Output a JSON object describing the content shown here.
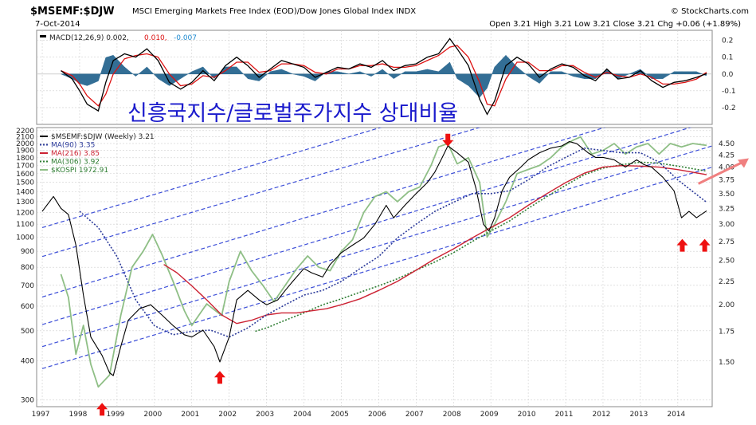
{
  "header": {
    "symbol": "$MSEMF:$DJW",
    "description": "MSCI Emerging Markets Free Index (EOD)/Dow Jones Global Index INDX",
    "brand": "© StockCharts.com",
    "date": "7-Oct-2014",
    "ohlc": "Open 3.21  High 3.21  Low 3.21  Close 3.21  Chg +0.06 (+1.89%)"
  },
  "overlay_title": "신흥국지수/글로벌주가지수 상대비율",
  "colors": {
    "ratio": "#000000",
    "ma90": "#2c3b9a",
    "ma216": "#cc2233",
    "ma306": "#2e7d32",
    "kospi": "#8fbf86",
    "channel": "#3d4fd8",
    "arrow": "#ee1111",
    "macd_line": "#000000",
    "macd_signal": "#dd1111",
    "macd_hist": "#1e5f8a",
    "grid": "#cfcfcf"
  },
  "chart_data": [
    {
      "type": "line",
      "panel": "MACD",
      "title": "MACD(12,26,9) 0.002, 0.010, -0.007",
      "legend": {
        "prefix": "MACD(12,26,9) 0.002,",
        "signal_value": "0.010,",
        "hist_value": "-0.007"
      },
      "ylim": [
        -0.3,
        0.26
      ],
      "yticks": [
        "0.2",
        "0.1",
        "0.0",
        "-0.1",
        "-0.2"
      ],
      "ytick_values": [
        0.2,
        0.1,
        0.0,
        -0.1,
        -0.2
      ],
      "x": [
        1997.5,
        1997.8,
        1998.0,
        1998.2,
        1998.5,
        1998.7,
        1998.9,
        1999.2,
        1999.5,
        1999.8,
        2000.1,
        2000.4,
        2000.7,
        2001.0,
        2001.3,
        2001.6,
        2001.9,
        2002.2,
        2002.5,
        2002.8,
        2003.1,
        2003.4,
        2003.7,
        2004.0,
        2004.3,
        2004.6,
        2004.9,
        2005.2,
        2005.5,
        2005.8,
        2006.1,
        2006.4,
        2006.7,
        2007.0,
        2007.3,
        2007.6,
        2007.9,
        2008.1,
        2008.4,
        2008.7,
        2008.9,
        2009.1,
        2009.4,
        2009.7,
        2010.0,
        2010.3,
        2010.6,
        2010.9,
        2011.2,
        2011.5,
        2011.8,
        2012.1,
        2012.4,
        2012.7,
        2013.0,
        2013.3,
        2013.6,
        2013.9,
        2014.2,
        2014.5,
        2014.77
      ],
      "series": [
        {
          "name": "MACD",
          "values": [
            0.02,
            -0.03,
            -0.1,
            -0.18,
            -0.22,
            -0.05,
            0.08,
            0.12,
            0.1,
            0.15,
            0.08,
            -0.05,
            -0.09,
            -0.05,
            0.02,
            -0.04,
            0.05,
            0.1,
            0.05,
            -0.02,
            0.03,
            0.08,
            0.06,
            0.04,
            -0.02,
            0.01,
            0.04,
            0.03,
            0.06,
            0.04,
            0.08,
            0.02,
            0.05,
            0.06,
            0.1,
            0.12,
            0.21,
            0.15,
            0.05,
            -0.15,
            -0.24,
            -0.16,
            0.05,
            0.1,
            0.06,
            -0.02,
            0.03,
            0.06,
            0.04,
            -0.01,
            -0.04,
            0.03,
            -0.03,
            -0.02,
            0.02,
            -0.04,
            -0.08,
            -0.05,
            -0.04,
            -0.02,
            0.002
          ]
        },
        {
          "name": "Signal",
          "values": [
            0.02,
            -0.01,
            -0.06,
            -0.13,
            -0.19,
            -0.12,
            0.0,
            0.09,
            0.11,
            0.12,
            0.1,
            0.0,
            -0.07,
            -0.06,
            -0.01,
            -0.02,
            0.02,
            0.07,
            0.07,
            0.01,
            0.02,
            0.06,
            0.06,
            0.05,
            0.01,
            0.0,
            0.03,
            0.03,
            0.05,
            0.05,
            0.06,
            0.04,
            0.04,
            0.05,
            0.08,
            0.11,
            0.16,
            0.17,
            0.1,
            -0.05,
            -0.18,
            -0.19,
            -0.03,
            0.07,
            0.07,
            0.02,
            0.02,
            0.05,
            0.05,
            0.01,
            -0.02,
            0.01,
            -0.01,
            -0.02,
            0.0,
            -0.02,
            -0.06,
            -0.06,
            -0.05,
            -0.03,
            0.01
          ]
        }
      ]
    },
    {
      "type": "line",
      "panel": "Price",
      "title": "$MSEMF:$DJW (Weekly) 3.21",
      "yscale": "log",
      "ylim_left": [
        285,
        2250
      ],
      "yticks_left": [
        "2200",
        "2100",
        "2000",
        "1900",
        "1800",
        "1700",
        "1600",
        "1500",
        "1400",
        "1300",
        "1200",
        "1100",
        "1000",
        "900",
        "800",
        "700",
        "600",
        "500",
        "400",
        "300"
      ],
      "ytick_values_left": [
        2200,
        2100,
        2000,
        1900,
        1800,
        1700,
        1600,
        1500,
        1400,
        1300,
        1200,
        1100,
        1000,
        900,
        800,
        700,
        600,
        500,
        400,
        300
      ],
      "yticks_right": [
        "4.50",
        "4.25",
        "4.00",
        "3.75",
        "3.50",
        "3.25",
        "3.00",
        "2.75",
        "2.50",
        "2.25",
        "2.00",
        "1.75",
        "1.50"
      ],
      "ytick_values_right": [
        4.5,
        4.25,
        4.0,
        3.75,
        3.5,
        3.25,
        3.0,
        2.75,
        2.5,
        2.25,
        2.0,
        1.75,
        1.5
      ],
      "xlim": [
        1996.85,
        2014.92
      ],
      "xticks": [
        "1997",
        "1998",
        "1999",
        "2000",
        "2001",
        "2002",
        "2003",
        "2004",
        "2005",
        "2006",
        "2007",
        "2008",
        "2009",
        "2010",
        "2011",
        "2012",
        "2013",
        "2014"
      ],
      "xtick_values": [
        1997,
        1998,
        1999,
        2000,
        2001,
        2002,
        2003,
        2004,
        2005,
        2006,
        2007,
        2008,
        2009,
        2010,
        2011,
        2012,
        2013,
        2014
      ],
      "legend": [
        {
          "label": "$MSEMF:$DJW (Weekly) 3.21",
          "series": "ratio"
        },
        {
          "label": "MA(90) 3.35",
          "series": "ma90"
        },
        {
          "label": "MA(216) 3.85",
          "series": "ma216"
        },
        {
          "label": "MA(306) 3.92",
          "series": "ma306"
        },
        {
          "label": "$KOSPI 1972.91",
          "series": "kospi"
        }
      ],
      "series": [
        {
          "name": "$MSEMF:$DJW",
          "axis": "right",
          "x": [
            1997.0,
            1997.3,
            1997.5,
            1997.7,
            1997.9,
            1998.1,
            1998.3,
            1998.6,
            1998.8,
            1998.9,
            1999.1,
            1999.3,
            1999.6,
            1999.9,
            2000.2,
            2000.5,
            2000.8,
            2001.0,
            2001.3,
            2001.6,
            2001.75,
            2002.0,
            2002.2,
            2002.5,
            2002.8,
            2003.0,
            2003.3,
            2003.5,
            2003.7,
            2004.0,
            2004.2,
            2004.5,
            2004.7,
            2005.0,
            2005.3,
            2005.6,
            2005.9,
            2006.2,
            2006.4,
            2006.7,
            2007.0,
            2007.3,
            2007.5,
            2007.7,
            2007.85,
            2008.1,
            2008.4,
            2008.6,
            2008.8,
            2008.95,
            2009.1,
            2009.3,
            2009.5,
            2009.8,
            2010.0,
            2010.3,
            2010.6,
            2010.9,
            2011.1,
            2011.3,
            2011.6,
            2011.8,
            2012.0,
            2012.3,
            2012.6,
            2012.9,
            2013.1,
            2013.3,
            2013.6,
            2013.9,
            2014.1,
            2014.3,
            2014.5,
            2014.77
          ],
          "values": [
            3.2,
            3.45,
            3.25,
            3.15,
            2.7,
            2.1,
            1.7,
            1.55,
            1.42,
            1.4,
            1.62,
            1.85,
            1.96,
            2.0,
            1.9,
            1.8,
            1.72,
            1.7,
            1.76,
            1.62,
            1.5,
            1.7,
            2.05,
            2.15,
            2.05,
            2.0,
            2.05,
            2.15,
            2.25,
            2.4,
            2.35,
            2.3,
            2.45,
            2.6,
            2.7,
            2.8,
            3.0,
            3.3,
            3.1,
            3.3,
            3.5,
            3.7,
            3.9,
            4.2,
            4.45,
            4.3,
            4.1,
            3.6,
            3.0,
            2.9,
            3.1,
            3.55,
            3.8,
            4.0,
            4.15,
            4.3,
            4.4,
            4.45,
            4.55,
            4.5,
            4.3,
            4.2,
            4.2,
            4.15,
            4.0,
            4.15,
            4.05,
            4.0,
            3.8,
            3.55,
            3.1,
            3.2,
            3.1,
            3.21
          ]
        },
        {
          "name": "MA(90)",
          "axis": "right",
          "x": [
            1998.0,
            1998.5,
            1999.0,
            1999.5,
            2000.0,
            2000.5,
            2001.0,
            2001.5,
            2002.0,
            2002.5,
            2003.0,
            2003.5,
            2004.0,
            2004.5,
            2005.0,
            2005.5,
            2006.0,
            2006.5,
            2007.0,
            2007.5,
            2008.0,
            2008.5,
            2009.0,
            2009.5,
            2010.0,
            2010.5,
            2011.0,
            2011.5,
            2012.0,
            2012.5,
            2013.0,
            2013.5,
            2014.0,
            2014.77
          ],
          "values": [
            3.2,
            2.95,
            2.55,
            2.05,
            1.8,
            1.72,
            1.75,
            1.76,
            1.7,
            1.78,
            1.9,
            2.0,
            2.1,
            2.15,
            2.25,
            2.4,
            2.55,
            2.8,
            3.0,
            3.2,
            3.35,
            3.5,
            3.5,
            3.55,
            3.75,
            4.0,
            4.2,
            4.4,
            4.35,
            4.3,
            4.3,
            4.1,
            3.75,
            3.35
          ]
        },
        {
          "name": "MA(216)",
          "axis": "right",
          "x": [
            2000.25,
            2000.6,
            2001.0,
            2001.4,
            2001.8,
            2002.2,
            2002.6,
            2003.0,
            2003.4,
            2003.8,
            2004.2,
            2004.6,
            2005.0,
            2005.5,
            2006.0,
            2006.5,
            2007.0,
            2007.5,
            2008.0,
            2008.5,
            2009.0,
            2009.5,
            2010.0,
            2010.5,
            2011.0,
            2011.5,
            2012.0,
            2012.5,
            2013.0,
            2013.5,
            2014.0,
            2014.77
          ],
          "values": [
            2.45,
            2.35,
            2.2,
            2.05,
            1.9,
            1.82,
            1.85,
            1.9,
            1.92,
            1.92,
            1.94,
            1.96,
            2.0,
            2.06,
            2.15,
            2.25,
            2.38,
            2.52,
            2.65,
            2.8,
            2.95,
            3.1,
            3.3,
            3.5,
            3.7,
            3.88,
            4.0,
            4.03,
            4.02,
            4.0,
            3.95,
            3.85
          ]
        },
        {
          "name": "MA(306)",
          "axis": "right",
          "x": [
            2002.7,
            2003.0,
            2003.5,
            2004.0,
            2004.5,
            2005.0,
            2005.5,
            2006.0,
            2006.5,
            2007.0,
            2007.5,
            2008.0,
            2008.5,
            2009.0,
            2009.5,
            2010.0,
            2010.5,
            2011.0,
            2011.5,
            2012.0,
            2012.5,
            2013.0,
            2013.5,
            2014.0,
            2014.77
          ],
          "values": [
            1.75,
            1.78,
            1.85,
            1.92,
            2.0,
            2.06,
            2.13,
            2.2,
            2.28,
            2.38,
            2.48,
            2.6,
            2.75,
            2.9,
            3.05,
            3.25,
            3.45,
            3.65,
            3.85,
            3.98,
            4.05,
            4.1,
            4.08,
            4.02,
            3.92
          ]
        },
        {
          "name": "$KOSPI",
          "axis": "left",
          "x": [
            1997.5,
            1997.7,
            1997.9,
            1998.1,
            1998.3,
            1998.5,
            1998.8,
            1999.1,
            1999.4,
            1999.7,
            1999.95,
            2000.2,
            2000.5,
            2000.8,
            2001.0,
            2001.4,
            2001.8,
            2002.0,
            2002.3,
            2002.6,
            2002.9,
            2003.2,
            2003.5,
            2003.8,
            2004.1,
            2004.4,
            2004.7,
            2005.0,
            2005.3,
            2005.6,
            2005.9,
            2006.2,
            2006.5,
            2006.8,
            2007.1,
            2007.4,
            2007.6,
            2007.85,
            2008.1,
            2008.4,
            2008.7,
            2008.9,
            2009.1,
            2009.4,
            2009.7,
            2010.0,
            2010.3,
            2010.6,
            2010.9,
            2011.2,
            2011.4,
            2011.7,
            2012.0,
            2012.3,
            2012.6,
            2012.9,
            2013.2,
            2013.5,
            2013.8,
            2014.1,
            2014.4,
            2014.77
          ],
          "values": [
            760,
            640,
            420,
            520,
            390,
            330,
            360,
            560,
            800,
            900,
            1020,
            880,
            720,
            580,
            520,
            610,
            560,
            720,
            900,
            780,
            700,
            620,
            700,
            790,
            870,
            800,
            780,
            900,
            980,
            1200,
            1350,
            1400,
            1300,
            1400,
            1450,
            1700,
            1950,
            2000,
            1720,
            1800,
            1500,
            1000,
            1100,
            1300,
            1600,
            1650,
            1700,
            1800,
            1950,
            2050,
            2100,
            1850,
            1900,
            2000,
            1850,
            1950,
            2000,
            1850,
            2000,
            1950,
            2000,
            1972.91
          ]
        }
      ],
      "channel_lines": [
        {
          "x": [
            1997.0,
            2014.92
          ],
          "values": [
            1.45,
            4.0
          ]
        },
        {
          "x": [
            1997.0,
            2014.92
          ],
          "values": [
            1.62,
            4.45
          ]
        },
        {
          "x": [
            1997.0,
            2014.92
          ],
          "values": [
            1.81,
            5.05
          ]
        },
        {
          "x": [
            1997.0,
            2014.92
          ],
          "values": [
            2.08,
            5.75
          ]
        },
        {
          "x": [
            1997.0,
            2014.92
          ],
          "values": [
            2.55,
            6.9
          ]
        },
        {
          "x": [
            1997.0,
            2014.92
          ],
          "values": [
            2.95,
            8.0
          ]
        }
      ],
      "arrows_up": [
        {
          "x": 1998.6,
          "value_left": 300
        },
        {
          "x": 2001.75,
          "value_left": 380
        },
        {
          "x": 2014.12,
          "value_left": 1010
        },
        {
          "x": 2014.72,
          "value_left": 1010
        }
      ],
      "arrows_down": [
        {
          "x": 2007.85,
          "value_left": 2200
        }
      ],
      "trend_arrow": {
        "x": [
          2014.55,
          2014.92
        ],
        "value_right": [
          3.8,
          4.05
        ]
      }
    }
  ]
}
